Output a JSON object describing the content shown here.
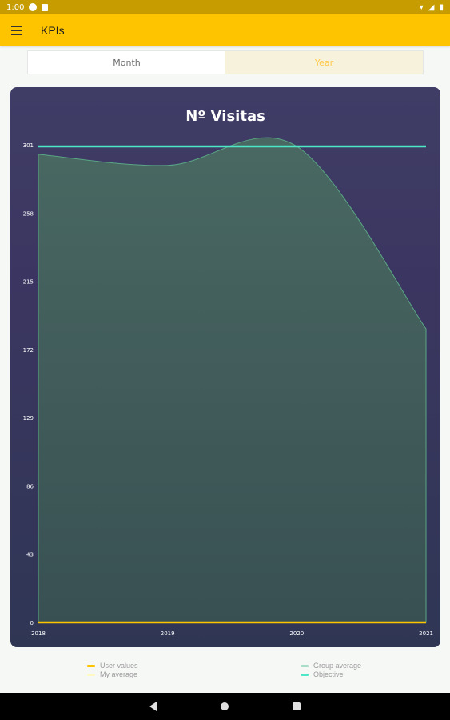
{
  "status_bar": {
    "time": "1:00"
  },
  "app_bar": {
    "title": "KPIs"
  },
  "tabs": [
    {
      "label": "Month",
      "selected": false
    },
    {
      "label": "Year",
      "selected": true
    }
  ],
  "colors": {
    "accent": "#ffc400",
    "user_values": "#ffc400",
    "my_average": "#fff9c4",
    "group_average": "#a8ddc8",
    "objective": "#4de8c8"
  },
  "chart_data": {
    "type": "area",
    "title": "Nº Visitas",
    "x": [
      "2018",
      "2019",
      "2020",
      "2021"
    ],
    "y_ticks": [
      "0",
      "43",
      "86",
      "129",
      "172",
      "215",
      "258",
      "301"
    ],
    "ylim": [
      0,
      301
    ],
    "series": [
      {
        "name": "User values",
        "values": [
          0,
          0,
          0,
          0
        ]
      },
      {
        "name": "My average",
        "values": [
          0,
          0,
          0,
          0
        ]
      },
      {
        "name": "Group average",
        "values": [
          295,
          288,
          300,
          185
        ]
      },
      {
        "name": "Objective",
        "values": [
          300,
          300,
          300,
          300
        ]
      }
    ],
    "grid": false,
    "legend": "bottom"
  },
  "legend": [
    {
      "label": "User values"
    },
    {
      "label": "My average"
    },
    {
      "label": "Group average"
    },
    {
      "label": "Objective"
    }
  ]
}
